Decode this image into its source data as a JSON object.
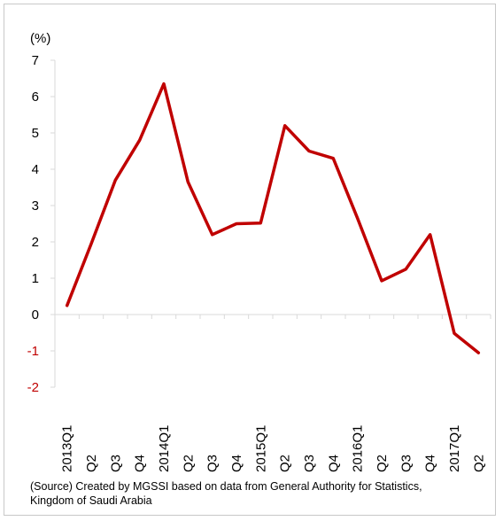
{
  "chart_data": {
    "type": "line",
    "unit_label": "(%)",
    "categories": [
      "2013Q1",
      "Q2",
      "Q3",
      "Q4",
      "2014Q1",
      "Q2",
      "Q3",
      "Q4",
      "2015Q1",
      "Q2",
      "Q3",
      "Q4",
      "2016Q1",
      "Q2",
      "Q3",
      "Q4",
      "2017Q1",
      "Q2"
    ],
    "series": [
      {
        "values": [
          0.25,
          1.95,
          3.7,
          4.8,
          6.35,
          3.65,
          2.2,
          2.5,
          2.52,
          5.2,
          4.5,
          4.3,
          2.65,
          0.93,
          1.25,
          2.2,
          -0.52,
          -1.05
        ]
      }
    ],
    "yticks": [
      7,
      6,
      5,
      4,
      3,
      2,
      1,
      0,
      -1,
      -2
    ],
    "ylim": [
      -2,
      7
    ],
    "colors": {
      "line": "#c00000",
      "negative_tick": "#c00000",
      "axis": "#d9d9d9"
    },
    "grid": false,
    "legend": "none"
  },
  "source": {
    "line1": "(Source) Created by MGSSI based on data from General Authority for Statistics,",
    "line2": "Kingdom of Saudi Arabia"
  }
}
